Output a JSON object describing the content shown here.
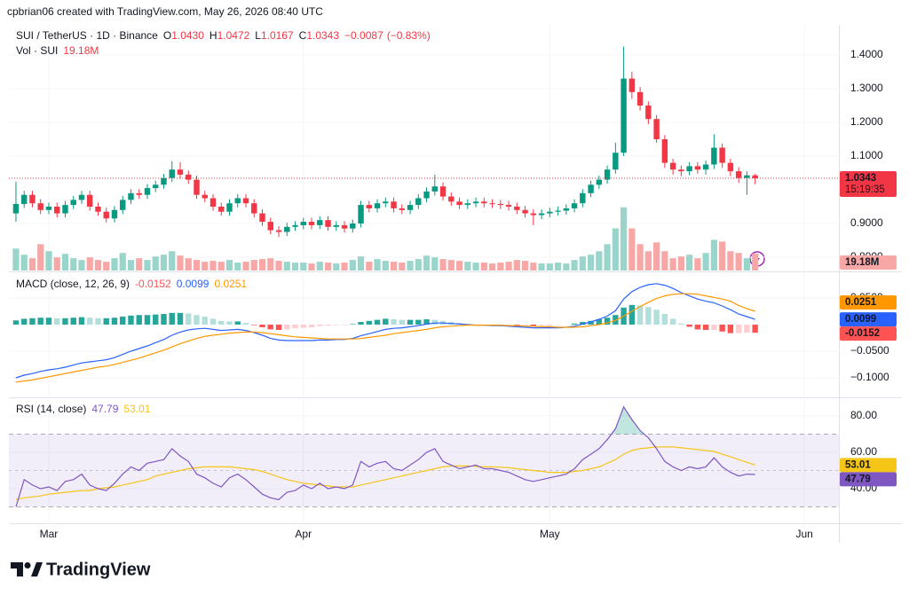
{
  "header": "cpbrian06 created with TradingView.com, May 26, 2026 08:40 UTC",
  "footer": "TradingView",
  "chart_data": {
    "type": "candlestick",
    "symbol": "SUI / TetherUS · 1D · Binance",
    "ohlc_legend": [
      {
        "key": "O",
        "value": 1.043,
        "label": "1.0430"
      },
      {
        "key": "H",
        "value": 1.0472,
        "label": "1.0472"
      },
      {
        "key": "L",
        "value": 1.0167,
        "label": "1.0167"
      },
      {
        "key": "C",
        "value": 1.0343,
        "label": "1.0343"
      }
    ],
    "change": {
      "value": -0.0087,
      "label": "−0.0087"
    },
    "change_pct": {
      "value": -0.83,
      "label": "(−0.83%)"
    },
    "countdown": "15:19:35",
    "up_color": "#089981",
    "down_color": "#f23645",
    "xlim": [
      -0.86,
      100.2
    ],
    "xticks": [
      {
        "value": 4,
        "label": "Mar"
      },
      {
        "value": 35,
        "label": "Apr"
      },
      {
        "value": 65,
        "label": "May"
      },
      {
        "value": 96,
        "label": "Jun"
      }
    ],
    "ylim": [
      0.7605,
      1.4895
    ],
    "yticks": [
      {
        "value": 0.8,
        "label": "0.8000"
      },
      {
        "value": 0.9,
        "label": "0.9000"
      },
      {
        "value": 1.1,
        "label": "1.1000"
      },
      {
        "value": 1.2,
        "label": "1.2000"
      },
      {
        "value": 1.3,
        "label": "1.3000"
      },
      {
        "value": 1.4,
        "label": "1.4000"
      }
    ],
    "grid": true,
    "open": [
      0.93,
      0.958,
      0.985,
      0.96,
      0.94,
      0.95,
      0.93,
      0.955,
      0.97,
      0.985,
      0.95,
      0.935,
      0.915,
      0.94,
      0.97,
      0.99,
      0.985,
      1.005,
      1.015,
      1.035,
      1.06,
      1.045,
      1.03,
      0.985,
      0.975,
      0.95,
      0.935,
      0.96,
      0.975,
      0.96,
      0.93,
      0.905,
      0.88,
      0.875,
      0.89,
      0.895,
      0.905,
      0.895,
      0.91,
      0.89,
      0.895,
      0.885,
      0.9,
      0.955,
      0.945,
      0.96,
      0.965,
      0.945,
      0.94,
      0.955,
      0.975,
      0.995,
      1.01,
      0.98,
      0.965,
      0.955,
      0.96,
      0.965,
      0.96,
      0.958,
      0.955,
      0.95,
      0.94,
      0.93,
      0.925,
      0.93,
      0.935,
      0.938,
      0.945,
      0.96,
      0.99,
      1.015,
      1.03,
      1.06,
      1.11,
      1.33,
      1.29,
      1.25,
      1.21,
      1.15,
      1.08,
      1.06,
      1.055,
      1.07,
      1.06,
      1.075,
      1.125,
      1.08,
      1.055,
      1.035,
      1.043
    ],
    "high": [
      1.024,
      0.997,
      0.997,
      0.972,
      0.962,
      0.962,
      0.967,
      0.982,
      0.997,
      0.997,
      0.962,
      0.947,
      0.952,
      0.982,
      1.002,
      1.002,
      1.017,
      1.027,
      1.047,
      1.085,
      1.082,
      1.057,
      1.042,
      0.997,
      0.987,
      0.962,
      0.972,
      0.987,
      0.987,
      0.972,
      0.942,
      0.917,
      0.892,
      0.902,
      0.907,
      0.917,
      0.917,
      0.922,
      0.922,
      0.907,
      0.907,
      0.912,
      0.967,
      0.967,
      0.972,
      0.977,
      0.977,
      0.957,
      0.967,
      0.987,
      1.007,
      1.045,
      1.022,
      0.992,
      0.977,
      0.972,
      0.977,
      0.977,
      0.972,
      0.97,
      0.967,
      0.962,
      0.952,
      0.942,
      0.942,
      0.947,
      0.95,
      0.957,
      0.972,
      1.002,
      1.027,
      1.042,
      1.072,
      1.14,
      1.425,
      1.35,
      1.305,
      1.262,
      1.222,
      1.162,
      1.092,
      1.072,
      1.082,
      1.082,
      1.087,
      1.165,
      1.137,
      1.092,
      1.067,
      1.055,
      1.0472
    ],
    "low": [
      0.905,
      0.946,
      0.948,
      0.928,
      0.928,
      0.918,
      0.918,
      0.943,
      0.958,
      0.938,
      0.923,
      0.903,
      0.903,
      0.928,
      0.958,
      0.973,
      0.973,
      0.993,
      1.003,
      1.023,
      1.033,
      1.018,
      0.973,
      0.963,
      0.938,
      0.923,
      0.923,
      0.948,
      0.948,
      0.918,
      0.893,
      0.868,
      0.86,
      0.863,
      0.878,
      0.883,
      0.883,
      0.883,
      0.878,
      0.878,
      0.873,
      0.873,
      0.888,
      0.933,
      0.933,
      0.948,
      0.933,
      0.928,
      0.928,
      0.943,
      0.963,
      0.983,
      0.968,
      0.953,
      0.943,
      0.943,
      0.948,
      0.948,
      0.946,
      0.943,
      0.938,
      0.928,
      0.918,
      0.895,
      0.913,
      0.918,
      0.923,
      0.926,
      0.933,
      0.948,
      0.978,
      1.003,
      1.018,
      1.048,
      1.1,
      1.27,
      1.235,
      1.195,
      1.14,
      1.065,
      1.045,
      1.04,
      1.043,
      1.048,
      1.045,
      1.062,
      1.065,
      1.04,
      1.02,
      0.985,
      1.0167
    ],
    "close": [
      0.958,
      0.985,
      0.96,
      0.94,
      0.95,
      0.93,
      0.955,
      0.97,
      0.985,
      0.95,
      0.935,
      0.915,
      0.94,
      0.97,
      0.99,
      0.985,
      1.005,
      1.015,
      1.035,
      1.06,
      1.045,
      1.03,
      0.985,
      0.975,
      0.95,
      0.935,
      0.96,
      0.975,
      0.96,
      0.93,
      0.905,
      0.88,
      0.875,
      0.89,
      0.895,
      0.905,
      0.895,
      0.91,
      0.89,
      0.895,
      0.885,
      0.9,
      0.955,
      0.945,
      0.96,
      0.965,
      0.945,
      0.94,
      0.955,
      0.975,
      0.995,
      1.01,
      0.98,
      0.965,
      0.955,
      0.96,
      0.965,
      0.96,
      0.958,
      0.955,
      0.95,
      0.94,
      0.93,
      0.925,
      0.93,
      0.935,
      0.938,
      0.945,
      0.96,
      0.99,
      1.015,
      1.03,
      1.06,
      1.11,
      1.33,
      1.29,
      1.25,
      1.21,
      1.15,
      1.08,
      1.06,
      1.055,
      1.07,
      1.06,
      1.075,
      1.125,
      1.08,
      1.055,
      1.035,
      1.043,
      1.0343
    ],
    "volume": {
      "name": "Vol · SUI",
      "ylim": [
        0,
        280
      ],
      "up_color": "#9ad5cb",
      "down_color": "#f7a8a6",
      "current": {
        "value": 19.18,
        "label": "19.18M"
      },
      "values": [
        25,
        18,
        14,
        30,
        22,
        15,
        19,
        14,
        12,
        15,
        12,
        10,
        14,
        20,
        12,
        14,
        12,
        16,
        18,
        22,
        17,
        14,
        12,
        10,
        11,
        10,
        12,
        9,
        10,
        12,
        13,
        14,
        11,
        10,
        9,
        9,
        8,
        10,
        9,
        8,
        9,
        12,
        16,
        10,
        13,
        11,
        10,
        9,
        11,
        13,
        17,
        15,
        13,
        12,
        11,
        10,
        9,
        9,
        8,
        9,
        10,
        12,
        11,
        9,
        8,
        8,
        9,
        8,
        12,
        16,
        18,
        22,
        30,
        48,
        72,
        48,
        30,
        22,
        32,
        22,
        14,
        16,
        18,
        14,
        20,
        35,
        33,
        22,
        20,
        14,
        19.18
      ]
    },
    "macd": {
      "title": "MACD (close, 12, 26, 9)",
      "ylim": [
        -0.135,
        0.0967
      ],
      "yticks": [
        {
          "value": 0.05,
          "label": "0.0500"
        },
        {
          "value": -0.05,
          "label": "−0.0500"
        },
        {
          "value": -0.1,
          "label": "−0.1000"
        }
      ],
      "histogram": {
        "colors": {
          "positive_rising": "#26a69a",
          "positive_falling": "#b2dfdb",
          "negative_falling": "#ff5252",
          "negative_rising": "#ffcdd2"
        },
        "values": [
          0.008,
          0.011,
          0.012,
          0.013,
          0.013,
          0.012,
          0.012,
          0.013,
          0.014,
          0.013,
          0.012,
          0.012,
          0.013,
          0.015,
          0.017,
          0.018,
          0.018,
          0.019,
          0.02,
          0.022,
          0.022,
          0.021,
          0.018,
          0.015,
          0.011,
          0.007,
          0.006,
          0.006,
          0.003,
          -0.001,
          -0.005,
          -0.009,
          -0.01,
          -0.009,
          -0.007,
          -0.006,
          -0.005,
          -0.003,
          -0.002,
          -0.001,
          -0.001,
          0.001,
          0.005,
          0.007,
          0.009,
          0.011,
          0.01,
          0.009,
          0.009,
          0.009,
          0.01,
          0.009,
          0.007,
          0.005,
          0.003,
          0.001,
          0.0,
          0.0,
          -0.001,
          -0.001,
          -0.001,
          -0.002,
          -0.002,
          -0.003,
          -0.002,
          -0.002,
          -0.001,
          0.0,
          0.002,
          0.005,
          0.007,
          0.01,
          0.013,
          0.018,
          0.032,
          0.037,
          0.036,
          0.033,
          0.028,
          0.02,
          0.011,
          0.002,
          -0.004,
          -0.009,
          -0.01,
          -0.01,
          -0.013,
          -0.016,
          -0.016,
          -0.015,
          -0.0152
        ]
      },
      "line": {
        "color": "#2962ff",
        "values": [
          -0.1,
          -0.095,
          -0.092,
          -0.088,
          -0.085,
          -0.083,
          -0.08,
          -0.076,
          -0.072,
          -0.07,
          -0.068,
          -0.066,
          -0.062,
          -0.056,
          -0.05,
          -0.045,
          -0.04,
          -0.034,
          -0.028,
          -0.02,
          -0.014,
          -0.01,
          -0.008,
          -0.007,
          -0.009,
          -0.011,
          -0.01,
          -0.009,
          -0.011,
          -0.015,
          -0.02,
          -0.026,
          -0.029,
          -0.03,
          -0.03,
          -0.03,
          -0.03,
          -0.029,
          -0.029,
          -0.028,
          -0.028,
          -0.026,
          -0.021,
          -0.017,
          -0.013,
          -0.009,
          -0.007,
          -0.006,
          -0.004,
          -0.002,
          0.001,
          0.003,
          0.003,
          0.002,
          0.001,
          0.0,
          -0.001,
          -0.001,
          -0.002,
          -0.002,
          -0.003,
          -0.004,
          -0.005,
          -0.006,
          -0.006,
          -0.006,
          -0.006,
          -0.005,
          -0.003,
          0.001,
          0.005,
          0.01,
          0.016,
          0.026,
          0.048,
          0.062,
          0.07,
          0.075,
          0.077,
          0.074,
          0.068,
          0.06,
          0.054,
          0.048,
          0.044,
          0.041,
          0.035,
          0.028,
          0.02,
          0.015,
          0.0099
        ]
      },
      "signal": {
        "color": "#ff9800",
        "values": [
          -0.108,
          -0.106,
          -0.104,
          -0.101,
          -0.098,
          -0.095,
          -0.092,
          -0.089,
          -0.086,
          -0.083,
          -0.08,
          -0.078,
          -0.075,
          -0.071,
          -0.067,
          -0.063,
          -0.058,
          -0.053,
          -0.048,
          -0.042,
          -0.036,
          -0.031,
          -0.026,
          -0.022,
          -0.02,
          -0.018,
          -0.016,
          -0.015,
          -0.014,
          -0.014,
          -0.015,
          -0.017,
          -0.019,
          -0.021,
          -0.023,
          -0.024,
          -0.025,
          -0.026,
          -0.027,
          -0.027,
          -0.027,
          -0.027,
          -0.026,
          -0.024,
          -0.022,
          -0.02,
          -0.017,
          -0.015,
          -0.013,
          -0.011,
          -0.009,
          -0.006,
          -0.004,
          -0.003,
          -0.002,
          -0.001,
          -0.001,
          -0.001,
          -0.001,
          -0.001,
          -0.002,
          -0.002,
          -0.003,
          -0.003,
          -0.004,
          -0.004,
          -0.005,
          -0.005,
          -0.005,
          -0.004,
          -0.002,
          0.0,
          0.003,
          0.008,
          0.016,
          0.025,
          0.034,
          0.042,
          0.049,
          0.054,
          0.057,
          0.058,
          0.058,
          0.057,
          0.054,
          0.051,
          0.048,
          0.044,
          0.036,
          0.03,
          0.0251
        ]
      }
    },
    "rsi": {
      "title": "RSI (14, close)",
      "ylim": [
        20.98,
        89.27
      ],
      "yticks": [
        {
          "value": 80,
          "label": "80.00"
        },
        {
          "value": 60,
          "label": "60.00"
        },
        {
          "value": 40,
          "label": "40.00"
        }
      ],
      "bands": [
        30,
        70
      ],
      "midline": 50,
      "band_color": "#7e57c2",
      "overbought_color": "#089981",
      "line": {
        "color": "#7e57c2",
        "values": [
          30,
          45,
          42,
          40,
          41,
          39,
          44,
          45,
          48,
          42,
          40,
          39,
          43,
          48,
          52,
          50,
          54,
          55,
          56,
          62,
          58,
          55,
          48,
          46,
          43,
          41,
          46,
          48,
          45,
          41,
          37,
          35,
          34,
          38,
          39,
          42,
          40,
          43,
          40,
          41,
          40,
          42,
          55,
          52,
          54,
          55,
          51,
          50,
          53,
          56,
          60,
          62,
          55,
          53,
          51,
          52,
          53,
          51,
          51,
          50,
          49,
          47,
          45,
          44,
          45,
          46,
          47,
          48,
          51,
          56,
          59,
          62,
          67,
          73,
          85,
          78,
          72,
          68,
          62,
          55,
          52,
          50,
          52,
          51,
          52,
          57,
          52,
          49,
          47,
          48,
          47.79
        ]
      },
      "ma": {
        "color": "#f5c518",
        "values": [
          34,
          35,
          35.5,
          36,
          37,
          37.5,
          38,
          38.5,
          39,
          39,
          40,
          40.5,
          41,
          42,
          43,
          44,
          45,
          47,
          48,
          49,
          50,
          51,
          51.5,
          52,
          52,
          52,
          52,
          51.5,
          51,
          50.5,
          49.5,
          48,
          46.5,
          45,
          44,
          43,
          42.5,
          42,
          41.5,
          41,
          41,
          41,
          42,
          43,
          44,
          45,
          46,
          47,
          48,
          49,
          50,
          51,
          52,
          52.5,
          52.5,
          52.5,
          52.3,
          52,
          52,
          51.8,
          51.5,
          51,
          50.5,
          50,
          49.5,
          49,
          49,
          49,
          49.5,
          50,
          51,
          52,
          54,
          56,
          59,
          61,
          62,
          62.5,
          63,
          63,
          63,
          62.5,
          62,
          61.5,
          61,
          60.5,
          59,
          57.5,
          56,
          54.5,
          53.01
        ]
      }
    }
  }
}
